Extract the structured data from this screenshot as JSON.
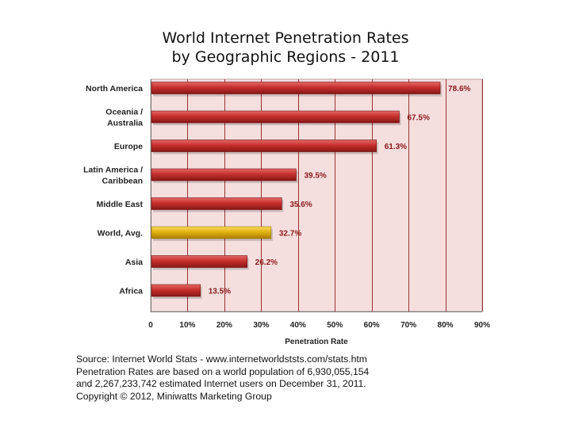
{
  "chart_data": {
    "type": "bar",
    "orientation": "horizontal",
    "title": "World Internet Penetration Rates",
    "subtitle": "by Geographic Regions - 2011",
    "categories": [
      "North America",
      "Oceania  /\nAustralia",
      "Europe",
      "Latin America /\nCaribbean",
      "Middle East",
      "World, Avg.",
      "Asia",
      "Africa"
    ],
    "values": [
      78.6,
      67.5,
      61.3,
      39.5,
      35.6,
      32.7,
      26.2,
      13.5
    ],
    "value_labels": [
      "78.6%",
      "67.5%",
      "61.3%",
      "39.5%",
      "35.6%",
      "32.7%",
      "26.2%",
      "13.5%"
    ],
    "highlight_category": "World, Avg.",
    "xlabel": "Penetration Rate",
    "ylabel": "",
    "xlim": [
      0,
      90
    ],
    "x_ticks": [
      0,
      10,
      20,
      30,
      40,
      50,
      60,
      70,
      80,
      90
    ],
    "x_tick_labels": [
      "0",
      "10%",
      "20%",
      "30%",
      "40%",
      "50%",
      "60%",
      "70%",
      "80%",
      "90%"
    ],
    "grid": "vertical major gridlines",
    "legend": "none"
  },
  "colors": {
    "bar": "#c0302f",
    "bar_highlight": "#e0b10e",
    "plot_background": "#f4dede",
    "gridline": "#9a3434",
    "value_label": "#8b1a1a"
  },
  "notes": [
    "Source: Internet World Stats - www.internetworldststs.com/stats.htm",
    "Penetration Rates are based on a world population of 6,930,055,154",
    "and 2,267,233,742 estimated Internet users on December 31, 2011.",
    "Copyright © 2012, Miniwatts Marketing Group"
  ]
}
